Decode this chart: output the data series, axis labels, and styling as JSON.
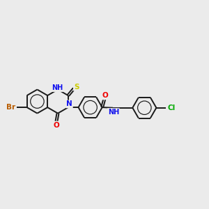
{
  "bg_color": "#ebebeb",
  "bond_color": "#1a1a1a",
  "bond_width": 1.4,
  "atom_colors": {
    "Br": "#b85c00",
    "O": "#ee0000",
    "N": "#1010ee",
    "S": "#cccc00",
    "Cl": "#00aa00",
    "C": "#1a1a1a"
  },
  "font_size": 7.5,
  "figsize": [
    3.0,
    3.0
  ],
  "dpi": 100
}
